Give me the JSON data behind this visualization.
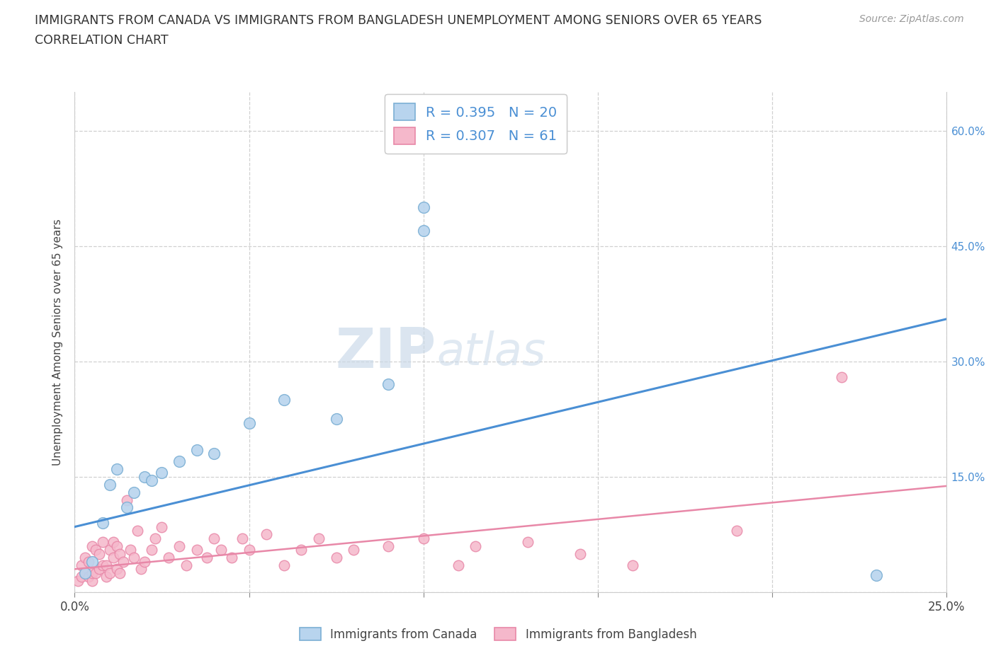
{
  "title_line1": "IMMIGRANTS FROM CANADA VS IMMIGRANTS FROM BANGLADESH UNEMPLOYMENT AMONG SENIORS OVER 65 YEARS",
  "title_line2": "CORRELATION CHART",
  "source_text": "Source: ZipAtlas.com",
  "ylabel": "Unemployment Among Seniors over 65 years",
  "xlim": [
    0.0,
    0.25
  ],
  "ylim": [
    0.0,
    0.65
  ],
  "xtick_vals": [
    0.0,
    0.05,
    0.1,
    0.15,
    0.2,
    0.25
  ],
  "xtick_labels": [
    "0.0%",
    "",
    "",
    "",
    "",
    "25.0%"
  ],
  "ytick_vals": [
    0.0,
    0.15,
    0.3,
    0.45,
    0.6
  ],
  "ytick_labels_left": [
    "",
    "",
    "",
    "",
    ""
  ],
  "ytick_labels_right": [
    "",
    "15.0%",
    "30.0%",
    "45.0%",
    "60.0%"
  ],
  "canada_face_color": "#b8d4ee",
  "canada_edge_color": "#7bafd4",
  "bangladesh_face_color": "#f5b8cb",
  "bangladesh_edge_color": "#e888a8",
  "trend_canada_color": "#4a8fd4",
  "trend_bangladesh_color": "#e888a8",
  "ytick_color": "#4a8fd4",
  "R_canada": "0.395",
  "N_canada": "20",
  "R_bangladesh": "0.307",
  "N_bangladesh": "61",
  "legend_label_canada": "Immigrants from Canada",
  "legend_label_bangladesh": "Immigrants from Bangladesh",
  "canada_x": [
    0.003,
    0.005,
    0.008,
    0.01,
    0.012,
    0.015,
    0.017,
    0.02,
    0.022,
    0.025,
    0.03,
    0.035,
    0.04,
    0.05,
    0.06,
    0.075,
    0.09,
    0.1,
    0.1,
    0.23
  ],
  "canada_y": [
    0.025,
    0.04,
    0.09,
    0.14,
    0.16,
    0.11,
    0.13,
    0.15,
    0.145,
    0.155,
    0.17,
    0.185,
    0.18,
    0.22,
    0.25,
    0.225,
    0.27,
    0.5,
    0.47,
    0.022
  ],
  "bangladesh_x": [
    0.001,
    0.002,
    0.002,
    0.003,
    0.003,
    0.004,
    0.004,
    0.005,
    0.005,
    0.005,
    0.006,
    0.006,
    0.007,
    0.007,
    0.008,
    0.008,
    0.009,
    0.009,
    0.01,
    0.01,
    0.011,
    0.011,
    0.012,
    0.012,
    0.013,
    0.013,
    0.014,
    0.015,
    0.016,
    0.017,
    0.018,
    0.019,
    0.02,
    0.022,
    0.023,
    0.025,
    0.027,
    0.03,
    0.032,
    0.035,
    0.038,
    0.04,
    0.042,
    0.045,
    0.048,
    0.05,
    0.055,
    0.06,
    0.065,
    0.07,
    0.075,
    0.08,
    0.09,
    0.1,
    0.11,
    0.115,
    0.13,
    0.145,
    0.16,
    0.19,
    0.22
  ],
  "bangladesh_y": [
    0.015,
    0.02,
    0.035,
    0.025,
    0.045,
    0.02,
    0.04,
    0.015,
    0.025,
    0.06,
    0.025,
    0.055,
    0.03,
    0.05,
    0.035,
    0.065,
    0.02,
    0.035,
    0.025,
    0.055,
    0.045,
    0.065,
    0.03,
    0.06,
    0.025,
    0.05,
    0.04,
    0.12,
    0.055,
    0.045,
    0.08,
    0.03,
    0.04,
    0.055,
    0.07,
    0.085,
    0.045,
    0.06,
    0.035,
    0.055,
    0.045,
    0.07,
    0.055,
    0.045,
    0.07,
    0.055,
    0.075,
    0.035,
    0.055,
    0.07,
    0.045,
    0.055,
    0.06,
    0.07,
    0.035,
    0.06,
    0.065,
    0.05,
    0.035,
    0.08,
    0.28
  ],
  "trend_canada_x0": 0.0,
  "trend_canada_y0": 0.085,
  "trend_canada_x1": 0.25,
  "trend_canada_y1": 0.355,
  "trend_bangladesh_x0": 0.0,
  "trend_bangladesh_y0": 0.03,
  "trend_bangladesh_x1": 0.25,
  "trend_bangladesh_y1": 0.138
}
